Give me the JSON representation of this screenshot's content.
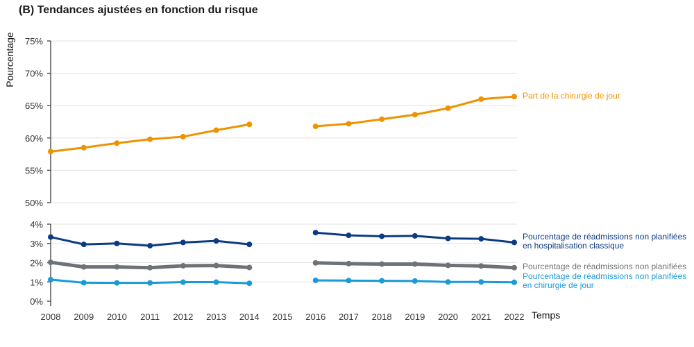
{
  "chart_data": {
    "type": "line",
    "title": "(B) Tendances ajustées en fonction du risque",
    "xlabel": "Temps",
    "ylabel": "Pourcentage",
    "x": [
      2008,
      2009,
      2010,
      2011,
      2012,
      2013,
      2014,
      2015,
      2016,
      2017,
      2018,
      2019,
      2020,
      2021,
      2022
    ],
    "x_tick_labels": [
      "2008",
      "2009",
      "2010",
      "2011",
      "2012",
      "2013",
      "2014",
      "2015",
      "2016",
      "2017",
      "2018",
      "2019",
      "2020",
      "2021",
      "2022"
    ],
    "panels": [
      {
        "name": "upper",
        "ylim": [
          50,
          75
        ],
        "ticks": [
          50,
          55,
          60,
          65,
          70,
          75
        ],
        "tick_labels": [
          "50%",
          "55%",
          "60%",
          "65%",
          "70%",
          "75%"
        ],
        "series": [
          {
            "name": "Part de la chirurgie de jour",
            "label_lines": [
              "Part de la chirurgie de jour"
            ],
            "color": "#ee9300",
            "values": [
              57.9,
              58.5,
              59.2,
              59.8,
              60.2,
              61.2,
              62.1,
              null,
              61.8,
              62.2,
              62.9,
              63.6,
              64.6,
              66.0,
              66.4
            ]
          }
        ]
      },
      {
        "name": "lower",
        "ylim": [
          0,
          4
        ],
        "ticks": [
          0,
          1,
          2,
          3,
          4
        ],
        "tick_labels": [
          "0%",
          "1%",
          "2%",
          "3%",
          "4%"
        ],
        "series": [
          {
            "name": "Pourcentage de réadmissions non planifiées en hospitalisation classique",
            "label_lines": [
              "Pourcentage de réadmissions non planifiées",
              "en hospitalisation classique"
            ],
            "color": "#0d3b82",
            "values": [
              3.33,
              2.95,
              3.0,
              2.88,
              3.05,
              3.13,
              2.95,
              null,
              3.56,
              3.42,
              3.37,
              3.39,
              3.26,
              3.24,
              3.05
            ]
          },
          {
            "name": "Pourcentage de réadmissions non planifiées",
            "label_lines": [
              "Pourcentage de réadmissions non planifiées"
            ],
            "color": "#6e7276",
            "values": [
              2.02,
              1.78,
              1.78,
              1.74,
              1.84,
              1.85,
              1.75,
              null,
              1.99,
              1.95,
              1.93,
              1.93,
              1.86,
              1.83,
              1.74
            ]
          },
          {
            "name": "Pourcentage de réadmissions non planifiées en chirurgie de jour",
            "label_lines": [
              "Pourcentage de réadmissions non planifiées",
              "en chirurgie de jour"
            ],
            "color": "#1a9ad6",
            "values": [
              1.12,
              0.96,
              0.95,
              0.95,
              0.99,
              0.99,
              0.93,
              null,
              1.08,
              1.07,
              1.06,
              1.05,
              1.0,
              1.0,
              0.98
            ]
          }
        ]
      }
    ]
  }
}
